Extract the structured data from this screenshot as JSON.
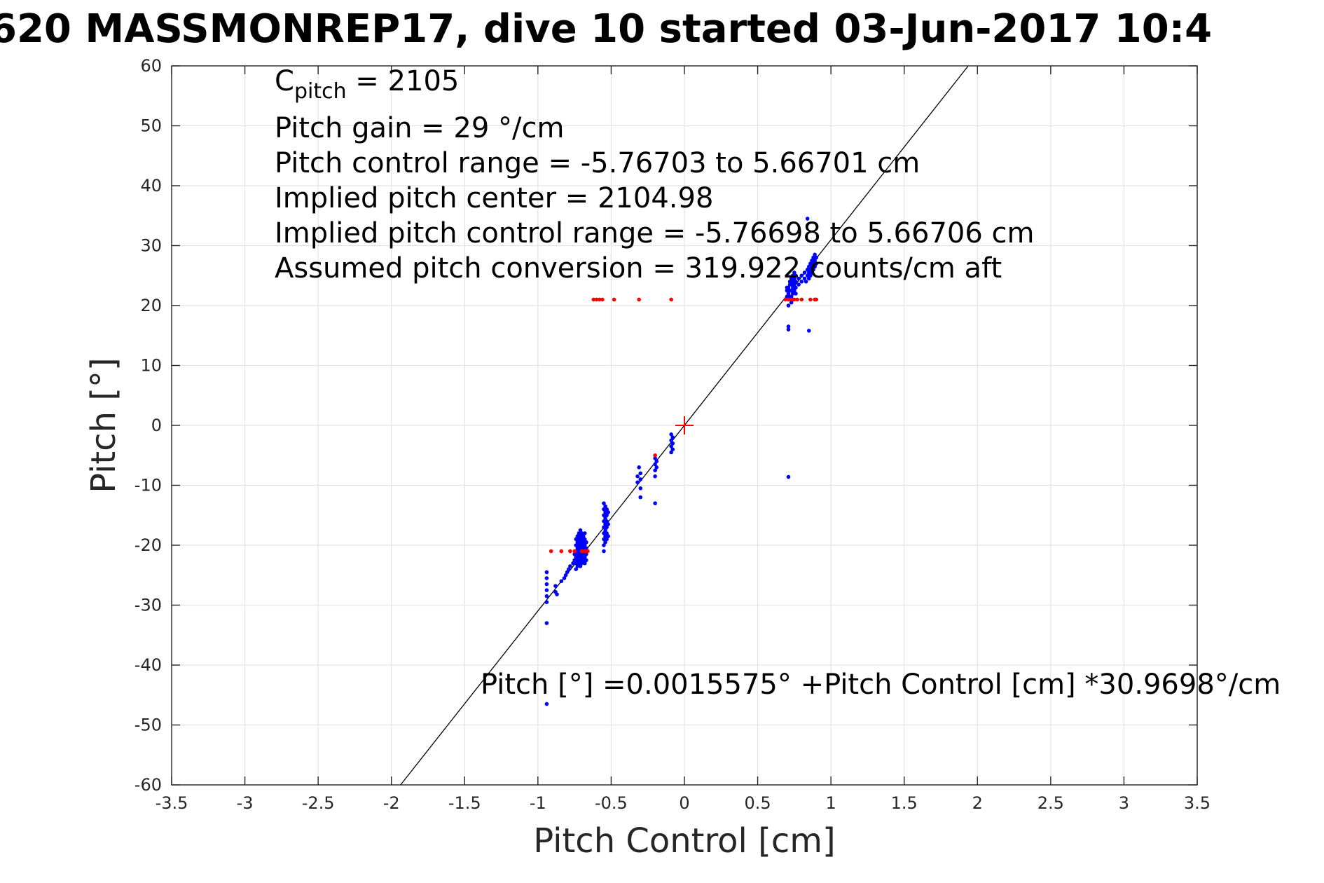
{
  "chart_data": {
    "type": "scatter",
    "title": "620 MASSMONREP17, dive 10 started 03-Jun-2017 10:4",
    "xlabel": "Pitch Control [cm]",
    "ylabel": "Pitch [°]",
    "xlim": [
      -3.5,
      3.5
    ],
    "ylim": [
      -60,
      60
    ],
    "grid": true,
    "xticks": [
      -3.5,
      -3,
      -2.5,
      -2,
      -1.5,
      -1,
      -0.5,
      0,
      0.5,
      1,
      1.5,
      2,
      2.5,
      3,
      3.5
    ],
    "xtick_labels": [
      "-3.5",
      "-3",
      "-2.5",
      "-2",
      "-1.5",
      "-1",
      "-0.5",
      "0",
      "0.5",
      "1",
      "1.5",
      "2",
      "2.5",
      "3",
      "3.5"
    ],
    "yticks": [
      60,
      50,
      40,
      30,
      20,
      10,
      0,
      -10,
      -20,
      -30,
      -40,
      -50,
      -60
    ],
    "ytick_labels": [
      "60",
      "50",
      "40",
      "30",
      "20",
      "10",
      "0",
      "-10",
      "-20",
      "-30",
      "-40",
      "-50",
      "-60"
    ],
    "annotations": {
      "cpitch_main": "C",
      "cpitch_sub": "pitch",
      "cpitch_value": " = 2105",
      "pitch_gain": "Pitch gain = 29 °/cm",
      "control_range": "Pitch control range = -5.76703 to 5.66701 cm",
      "implied_center": "Implied pitch center = 2104.98",
      "implied_range": "Implied pitch control range = -5.76698 to 5.66706 cm",
      "conversion": "Assumed pitch conversion = 319.922 counts/cm aft",
      "fit_equation": "Pitch [°] =0.0015575° +Pitch Control [cm] *30.9698°/cm"
    },
    "series": [
      {
        "type": "scatter",
        "color": "#0000ff",
        "points": [
          [
            -0.94,
            -24.5
          ],
          [
            -0.94,
            -25.5
          ],
          [
            -0.94,
            -26.5
          ],
          [
            -0.94,
            -27.5
          ],
          [
            -0.94,
            -28.5
          ],
          [
            -0.94,
            -29.5
          ],
          [
            -0.94,
            -33.0
          ],
          [
            -0.94,
            -46.5
          ],
          [
            -0.88,
            -26.8
          ],
          [
            -0.88,
            -27.8
          ],
          [
            -0.87,
            -28.2
          ],
          [
            -0.84,
            -26.0
          ],
          [
            -0.82,
            -25.5
          ],
          [
            -0.81,
            -25.0
          ],
          [
            -0.8,
            -24.5
          ],
          [
            -0.79,
            -24.0
          ],
          [
            -0.78,
            -23.5
          ],
          [
            -0.76,
            -23.0
          ],
          [
            -0.75,
            -22.5
          ],
          [
            -0.75,
            -21.5
          ],
          [
            -0.74,
            -19.0
          ],
          [
            -0.74,
            -20.0
          ],
          [
            -0.74,
            -21.0
          ],
          [
            -0.74,
            -22.0
          ],
          [
            -0.74,
            -23.0
          ],
          [
            -0.74,
            -24.0
          ],
          [
            -0.73,
            -18.5
          ],
          [
            -0.73,
            -19.5
          ],
          [
            -0.73,
            -20.5
          ],
          [
            -0.73,
            -21.5
          ],
          [
            -0.73,
            -22.5
          ],
          [
            -0.73,
            -23.5
          ],
          [
            -0.72,
            -18.0
          ],
          [
            -0.72,
            -19.0
          ],
          [
            -0.72,
            -20.0
          ],
          [
            -0.72,
            -21.0
          ],
          [
            -0.72,
            -22.0
          ],
          [
            -0.72,
            -23.0
          ],
          [
            -0.71,
            -17.5
          ],
          [
            -0.71,
            -18.5
          ],
          [
            -0.71,
            -19.5
          ],
          [
            -0.71,
            -20.5
          ],
          [
            -0.71,
            -21.5
          ],
          [
            -0.71,
            -22.5
          ],
          [
            -0.71,
            -23.5
          ],
          [
            -0.7,
            -18.0
          ],
          [
            -0.7,
            -19.0
          ],
          [
            -0.7,
            -20.0
          ],
          [
            -0.7,
            -21.0
          ],
          [
            -0.7,
            -22.0
          ],
          [
            -0.7,
            -23.0
          ],
          [
            -0.69,
            -18.5
          ],
          [
            -0.69,
            -19.5
          ],
          [
            -0.69,
            -20.5
          ],
          [
            -0.69,
            -21.5
          ],
          [
            -0.69,
            -22.5
          ],
          [
            -0.68,
            -18.0
          ],
          [
            -0.68,
            -19.0
          ],
          [
            -0.68,
            -20.0
          ],
          [
            -0.68,
            -21.0
          ],
          [
            -0.68,
            -22.0
          ],
          [
            -0.68,
            -23.0
          ],
          [
            -0.67,
            -19.5
          ],
          [
            -0.67,
            -20.5
          ],
          [
            -0.67,
            -21.5
          ],
          [
            -0.67,
            -22.5
          ],
          [
            -0.55,
            -13.0
          ],
          [
            -0.55,
            -14.0
          ],
          [
            -0.55,
            -15.0
          ],
          [
            -0.55,
            -16.0
          ],
          [
            -0.55,
            -17.0
          ],
          [
            -0.55,
            -18.0
          ],
          [
            -0.55,
            -19.0
          ],
          [
            -0.55,
            -20.0
          ],
          [
            -0.55,
            -21.0
          ],
          [
            -0.54,
            -13.5
          ],
          [
            -0.54,
            -14.5
          ],
          [
            -0.54,
            -15.5
          ],
          [
            -0.54,
            -16.5
          ],
          [
            -0.54,
            -17.5
          ],
          [
            -0.54,
            -18.5
          ],
          [
            -0.54,
            -19.5
          ],
          [
            -0.53,
            -14.0
          ],
          [
            -0.53,
            -15.0
          ],
          [
            -0.53,
            -16.0
          ],
          [
            -0.53,
            -17.0
          ],
          [
            -0.53,
            -18.0
          ],
          [
            -0.53,
            -19.0
          ],
          [
            -0.52,
            -14.5
          ],
          [
            -0.52,
            -16.5
          ],
          [
            -0.52,
            -18.5
          ],
          [
            -0.32,
            -8.5
          ],
          [
            -0.32,
            -9.5
          ],
          [
            -0.31,
            -7.0
          ],
          [
            -0.3,
            -8.0
          ],
          [
            -0.3,
            -9.0
          ],
          [
            -0.3,
            -10.5
          ],
          [
            -0.3,
            -12.0
          ],
          [
            -0.2,
            -5.5
          ],
          [
            -0.2,
            -6.5
          ],
          [
            -0.2,
            -7.5
          ],
          [
            -0.2,
            -8.5
          ],
          [
            -0.19,
            -6.0
          ],
          [
            -0.19,
            -7.0
          ],
          [
            -0.2,
            -13.0
          ],
          [
            -0.09,
            -1.5
          ],
          [
            -0.09,
            -2.5
          ],
          [
            -0.09,
            -3.5
          ],
          [
            -0.09,
            -4.5
          ],
          [
            -0.08,
            -2.0
          ],
          [
            -0.08,
            -3.0
          ],
          [
            -0.08,
            -4.0
          ],
          [
            0.7,
            21.5
          ],
          [
            0.7,
            22.5
          ],
          [
            0.7,
            23.0
          ],
          [
            0.71,
            20.0
          ],
          [
            0.71,
            21.0
          ],
          [
            0.71,
            22.0
          ],
          [
            0.71,
            23.0
          ],
          [
            0.71,
            16.5
          ],
          [
            0.71,
            16.0
          ],
          [
            0.71,
            -8.6
          ],
          [
            0.72,
            21.5
          ],
          [
            0.72,
            22.5
          ],
          [
            0.72,
            23.5
          ],
          [
            0.72,
            24.0
          ],
          [
            0.73,
            20.5
          ],
          [
            0.73,
            21.5
          ],
          [
            0.73,
            22.5
          ],
          [
            0.73,
            23.5
          ],
          [
            0.73,
            24.5
          ],
          [
            0.74,
            21.0
          ],
          [
            0.74,
            22.0
          ],
          [
            0.74,
            23.0
          ],
          [
            0.74,
            24.0
          ],
          [
            0.74,
            25.0
          ],
          [
            0.75,
            22.5
          ],
          [
            0.75,
            23.5
          ],
          [
            0.75,
            24.5
          ],
          [
            0.75,
            25.5
          ],
          [
            0.76,
            22.0
          ],
          [
            0.76,
            23.0
          ],
          [
            0.76,
            24.0
          ],
          [
            0.76,
            25.0
          ],
          [
            0.78,
            23.5
          ],
          [
            0.78,
            24.5
          ],
          [
            0.8,
            24.0
          ],
          [
            0.8,
            25.0
          ],
          [
            0.82,
            24.5
          ],
          [
            0.82,
            25.5
          ],
          [
            0.83,
            24.0
          ],
          [
            0.84,
            25.0
          ],
          [
            0.84,
            26.0
          ],
          [
            0.84,
            34.5
          ],
          [
            0.85,
            24.5
          ],
          [
            0.85,
            25.5
          ],
          [
            0.85,
            26.5
          ],
          [
            0.85,
            15.8
          ],
          [
            0.86,
            25.0
          ],
          [
            0.86,
            26.0
          ],
          [
            0.86,
            27.0
          ],
          [
            0.87,
            25.5
          ],
          [
            0.87,
            26.5
          ],
          [
            0.87,
            27.5
          ],
          [
            0.88,
            26.0
          ],
          [
            0.88,
            27.0
          ],
          [
            0.88,
            28.0
          ],
          [
            0.89,
            26.5
          ],
          [
            0.89,
            27.5
          ],
          [
            0.89,
            28.5
          ],
          [
            0.9,
            27.0
          ],
          [
            0.9,
            28.0
          ]
        ]
      },
      {
        "type": "scatter",
        "color": "#ff0000",
        "points": [
          [
            -0.91,
            -21.0
          ],
          [
            -0.84,
            -21.0
          ],
          [
            -0.78,
            -21.0
          ],
          [
            -0.75,
            -21.0
          ],
          [
            -0.7,
            -21.0
          ],
          [
            -0.68,
            -21.0
          ],
          [
            -0.66,
            -21.0
          ],
          [
            -0.2,
            -5.0
          ],
          [
            -0.62,
            21.0
          ],
          [
            -0.6,
            21.0
          ],
          [
            -0.58,
            21.0
          ],
          [
            -0.56,
            21.0
          ],
          [
            -0.48,
            21.0
          ],
          [
            -0.31,
            21.0
          ],
          [
            -0.09,
            21.0
          ],
          [
            0.69,
            21.0
          ],
          [
            0.71,
            21.0
          ],
          [
            0.73,
            21.0
          ],
          [
            0.75,
            21.0
          ],
          [
            0.77,
            21.0
          ],
          [
            0.8,
            21.0
          ],
          [
            0.86,
            21.0
          ],
          [
            0.89,
            21.0
          ],
          [
            0.9,
            21.0
          ]
        ]
      },
      {
        "type": "line",
        "color": "#000000",
        "intercept": 0.0015575,
        "slope": 30.9698
      },
      {
        "type": "marker",
        "marker": "plus",
        "color": "#ff0000",
        "points": [
          [
            0,
            0
          ]
        ]
      }
    ]
  }
}
